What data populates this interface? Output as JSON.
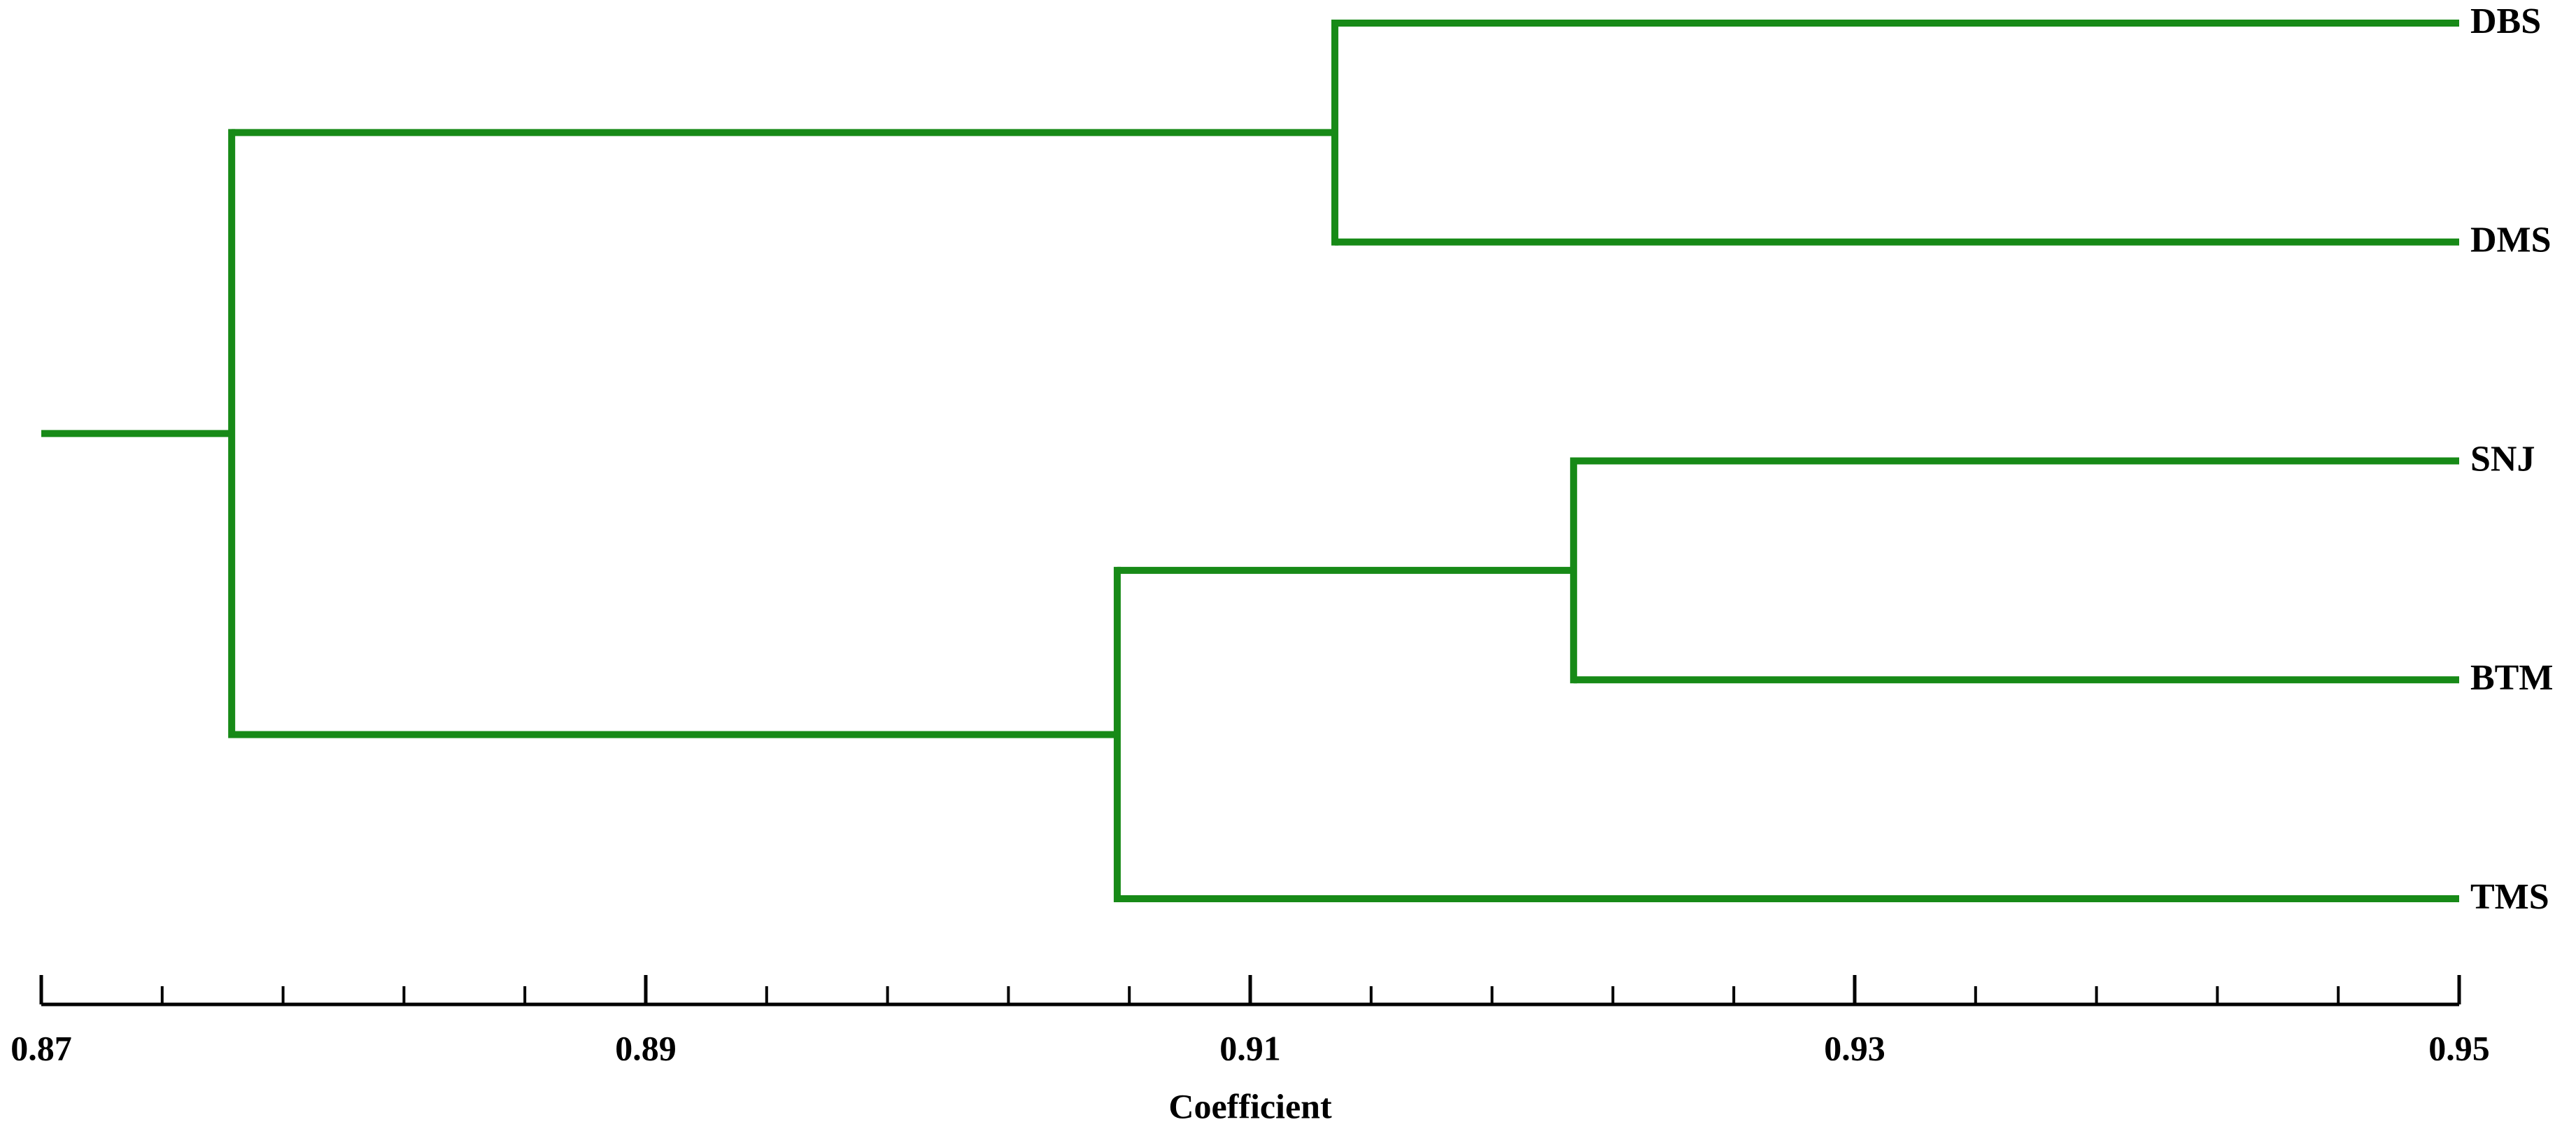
{
  "chart_data": {
    "type": "dendrogram",
    "x_label": "Coefficient",
    "color": "#178a17",
    "xlim": [
      0.87,
      0.95
    ],
    "xticks": [
      0.87,
      0.89,
      0.91,
      0.93,
      0.95
    ],
    "minor_xticks": [
      0.874,
      0.878,
      0.882,
      0.886,
      0.894,
      0.898,
      0.902,
      0.906,
      0.914,
      0.918,
      0.922,
      0.926,
      0.934,
      0.938,
      0.942,
      0.946
    ],
    "tree": {
      "height": 0.8763,
      "children": [
        {
          "height": 0.9128,
          "children": [
            {
              "label": "DBS"
            },
            {
              "label": "DMS"
            }
          ]
        },
        {
          "height": 0.9056,
          "children": [
            {
              "height": 0.9207,
              "children": [
                {
                  "label": "SNJ"
                },
                {
                  "label": "BTM"
                }
              ]
            },
            {
              "label": "TMS"
            }
          ]
        }
      ]
    }
  }
}
